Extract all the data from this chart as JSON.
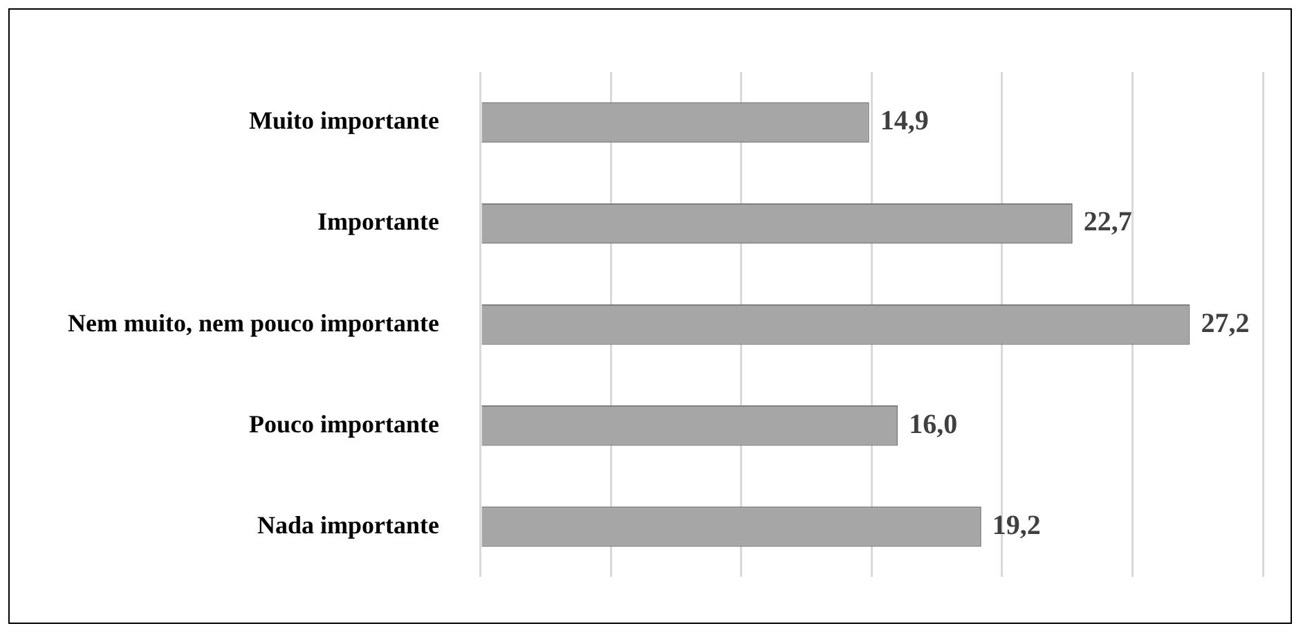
{
  "chart_data": {
    "type": "bar",
    "orientation": "horizontal",
    "categories": [
      "Muito importante",
      "Importante",
      "Nem muito, nem pouco importante",
      "Pouco importante",
      "Nada importante"
    ],
    "values": [
      14.9,
      22.7,
      27.2,
      16.0,
      19.2
    ],
    "value_labels": [
      "14,9",
      "22,7",
      "27,2",
      "16,0",
      "19,2"
    ],
    "color": "#a6a6a6",
    "xlim": [
      0,
      30
    ],
    "xticks": [
      {
        "value": 0,
        "label": null
      },
      {
        "value": 5,
        "label": null
      },
      {
        "value": 10,
        "label": null
      },
      {
        "value": 15,
        "label": null
      },
      {
        "value": 20,
        "label": null
      },
      {
        "value": 25,
        "label": null
      },
      {
        "value": 30,
        "label": null
      }
    ],
    "grid": "x",
    "tick_labels": "y",
    "legend": false
  }
}
